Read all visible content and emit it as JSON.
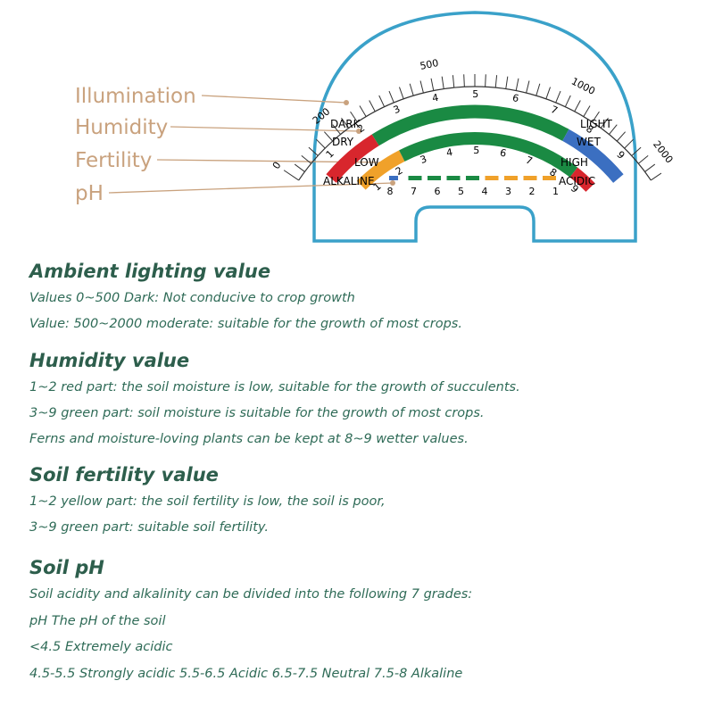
{
  "meter": {
    "labels": [
      "Illumination",
      "Humidity",
      "Fertility",
      "pH"
    ],
    "illumination_scale": [
      "0",
      "200",
      "500",
      "1000",
      "2000"
    ],
    "humidity_ends": [
      "DARK",
      "LIGHT",
      "DRY",
      "WET"
    ],
    "humidity_numbers": [
      "1",
      "2",
      "3",
      "4",
      "5",
      "6",
      "7",
      "8",
      "9"
    ],
    "fertility_ends": [
      "LOW",
      "HIGH"
    ],
    "fertility_numbers": [
      "1",
      "2",
      "3",
      "4",
      "5",
      "6",
      "7",
      "8",
      "9"
    ],
    "ph_ends": [
      "ALKALINE",
      "ACIDIC"
    ],
    "ph_numbers": [
      "8",
      "7",
      "6",
      "5",
      "4",
      "3",
      "2",
      "1"
    ]
  },
  "sections": [
    {
      "heading": "Ambient lighting value",
      "lines": [
        "Values 0~500 Dark: Not conducive to crop growth",
        "Value: 500~2000 moderate: suitable for the growth of most crops."
      ]
    },
    {
      "heading": "Humidity value",
      "lines": [
        "1~2 red part: the soil moisture is low, suitable for the growth of succulents.",
        "3~9 green part: soil moisture is suitable for the growth of most crops.",
        "Ferns and moisture-loving plants can be kept at 8~9 wetter values."
      ]
    },
    {
      "heading": "Soil fertility value",
      "lines": [
        "1~2 yellow part: the soil fertility is low, the soil is poor,",
        "3~9 green part: suitable soil fertility."
      ]
    },
    {
      "heading": "Soil pH",
      "lines": [
        "Soil acidity and alkalinity can be divided into the following 7 grades:",
        "pH The pH of the soil",
        "<4.5 Extremely acidic",
        "4.5-5.5 Strongly acidic 5.5-6.5 Acidic 6.5-7.5 Neutral 7.5-8 Alkaline"
      ]
    }
  ]
}
